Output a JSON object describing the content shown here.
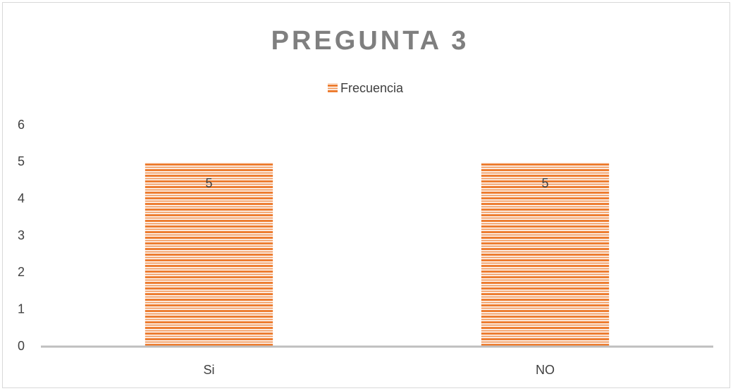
{
  "chart_data": {
    "type": "bar",
    "title": "PREGUNTA 3",
    "categories": [
      "Si",
      "NO"
    ],
    "series": [
      {
        "name": "Frecuencia",
        "color": "#ed7d31",
        "values": [
          5,
          5
        ]
      }
    ],
    "ylim": [
      0,
      6
    ],
    "yticks": [
      0,
      1,
      2,
      3,
      4,
      5,
      6
    ],
    "grid": false,
    "legend": "top"
  }
}
